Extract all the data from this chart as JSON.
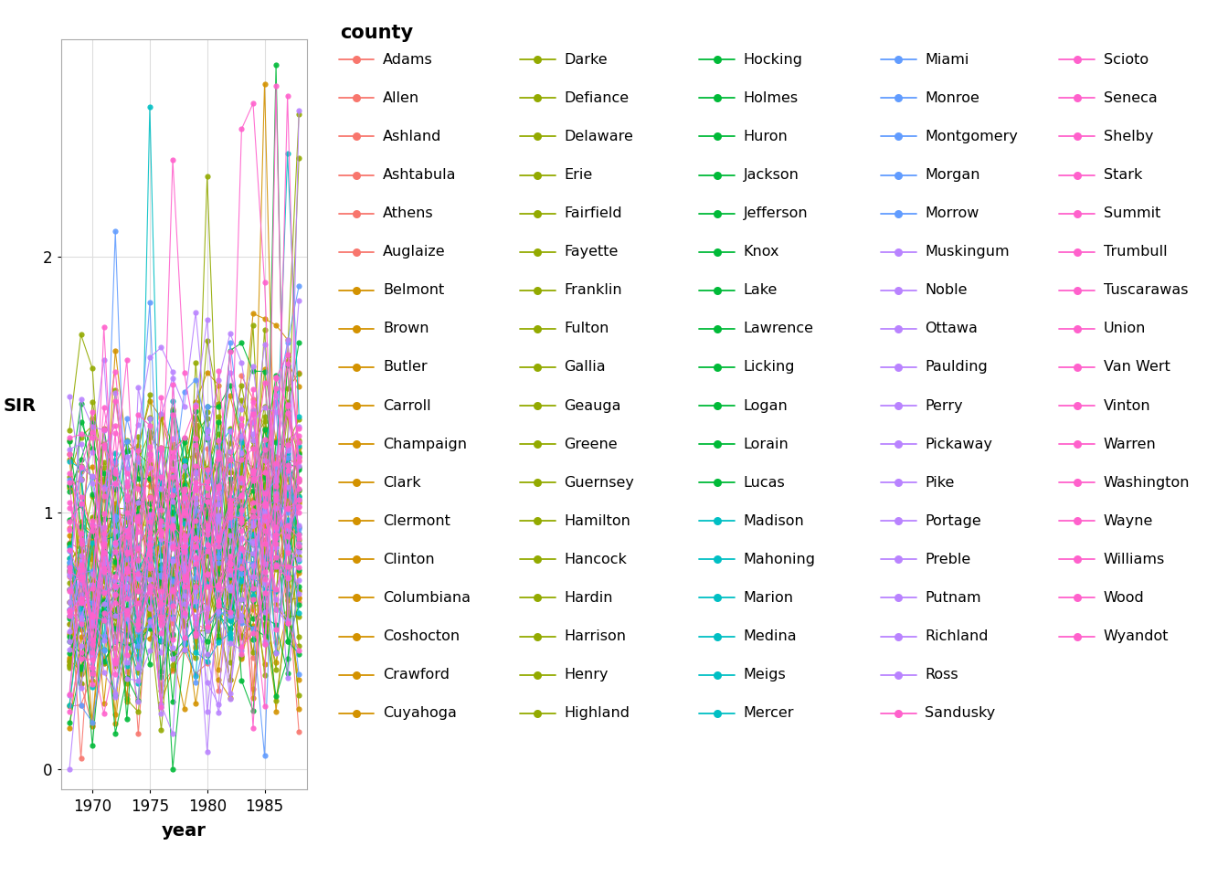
{
  "xlabel": "year",
  "ylabel": "SIR",
  "xlim": [
    1967.3,
    1988.7
  ],
  "ylim": [
    -0.08,
    2.85
  ],
  "yticks": [
    0,
    1,
    2
  ],
  "xticks": [
    1970,
    1975,
    1980,
    1985
  ],
  "years": [
    1968,
    1969,
    1970,
    1971,
    1972,
    1973,
    1974,
    1975,
    1976,
    1977,
    1978,
    1979,
    1980,
    1981,
    1982,
    1983,
    1984,
    1985,
    1986,
    1987,
    1988
  ],
  "legend_title": "county",
  "county_colors": {
    "Adams": "#F8766D",
    "Allen": "#F8766D",
    "Ashland": "#F8766D",
    "Ashtabula": "#F8766D",
    "Athens": "#F8766D",
    "Auglaize": "#F8766D",
    "Belmont": "#D39200",
    "Brown": "#D39200",
    "Butler": "#D39200",
    "Carroll": "#D39200",
    "Champaign": "#D39200",
    "Clark": "#D39200",
    "Clermont": "#D39200",
    "Clinton": "#D39200",
    "Columbiana": "#D39200",
    "Coshocton": "#D39200",
    "Crawford": "#D39200",
    "Cuyahoga": "#D39200",
    "Darke": "#93AA00",
    "Defiance": "#93AA00",
    "Delaware": "#93AA00",
    "Erie": "#93AA00",
    "Fairfield": "#93AA00",
    "Fayette": "#93AA00",
    "Franklin": "#93AA00",
    "Fulton": "#93AA00",
    "Gallia": "#93AA00",
    "Geauga": "#93AA00",
    "Greene": "#93AA00",
    "Guernsey": "#93AA00",
    "Hamilton": "#93AA00",
    "Hancock": "#93AA00",
    "Hardin": "#93AA00",
    "Harrison": "#93AA00",
    "Henry": "#93AA00",
    "Highland": "#93AA00",
    "Hocking": "#00BA38",
    "Holmes": "#00BA38",
    "Huron": "#00BA38",
    "Jackson": "#00BA38",
    "Jefferson": "#00BA38",
    "Knox": "#00BA38",
    "Lake": "#00BA38",
    "Lawrence": "#00BA38",
    "Licking": "#00BA38",
    "Logan": "#00BA38",
    "Lorain": "#00BA38",
    "Lucas": "#00BA38",
    "Madison": "#00BFC4",
    "Mahoning": "#00BFC4",
    "Marion": "#00BFC4",
    "Medina": "#00BFC4",
    "Meigs": "#00BFC4",
    "Mercer": "#00BFC4",
    "Miami": "#619CFF",
    "Monroe": "#619CFF",
    "Montgomery": "#619CFF",
    "Morgan": "#619CFF",
    "Morrow": "#619CFF",
    "Muskingum": "#B983FF",
    "Noble": "#B983FF",
    "Ottawa": "#B983FF",
    "Paulding": "#B983FF",
    "Perry": "#B983FF",
    "Pickaway": "#B983FF",
    "Pike": "#B983FF",
    "Portage": "#B983FF",
    "Preble": "#B983FF",
    "Putnam": "#B983FF",
    "Richland": "#B983FF",
    "Ross": "#B983FF",
    "Sandusky": "#FF61CC",
    "Scioto": "#FF61CC",
    "Seneca": "#FF61CC",
    "Shelby": "#FF61CC",
    "Stark": "#FF61CC",
    "Summit": "#FF61CC",
    "Trumbull": "#FF61CC",
    "Tuscarawas": "#FF61CC",
    "Union": "#FF61CC",
    "Van Wert": "#FF61CC",
    "Vinton": "#FF61CC",
    "Warren": "#FF61CC",
    "Washington": "#FF61CC",
    "Wayne": "#FF61CC",
    "Williams": "#FF61CC",
    "Wood": "#FF61CC",
    "Wyandot": "#FF61CC"
  },
  "legend_columns": [
    [
      "Adams",
      "Allen",
      "Ashland",
      "Ashtabula",
      "Athens",
      "Auglaize",
      "Belmont",
      "Brown",
      "Butler",
      "Carroll",
      "Champaign",
      "Clark",
      "Clermont",
      "Clinton",
      "Columbiana",
      "Coshocton",
      "Crawford",
      "Cuyahoga"
    ],
    [
      "Darke",
      "Defiance",
      "Delaware",
      "Erie",
      "Fairfield",
      "Fayette",
      "Franklin",
      "Fulton",
      "Gallia",
      "Geauga",
      "Greene",
      "Guernsey",
      "Hamilton",
      "Hancock",
      "Hardin",
      "Harrison",
      "Henry",
      "Highland"
    ],
    [
      "Hocking",
      "Holmes",
      "Huron",
      "Jackson",
      "Jefferson",
      "Knox",
      "Lake",
      "Lawrence",
      "Licking",
      "Logan",
      "Lorain",
      "Lucas",
      "Madison",
      "Mahoning",
      "Marion",
      "Medina",
      "Meigs",
      "Mercer"
    ],
    [
      "Miami",
      "Monroe",
      "Montgomery",
      "Morgan",
      "Morrow",
      "Muskingum",
      "Noble",
      "Ottawa",
      "Paulding",
      "Perry",
      "Pickaway",
      "Pike",
      "Portage",
      "Preble",
      "Putnam",
      "Richland",
      "Ross",
      "Sandusky"
    ],
    [
      "Scioto",
      "Seneca",
      "Shelby",
      "Stark",
      "Summit",
      "Trumbull",
      "Tuscarawas",
      "Union",
      "Van Wert",
      "Vinton",
      "Warren",
      "Washington",
      "Wayne",
      "Williams",
      "Wood",
      "Wyandot"
    ]
  ]
}
